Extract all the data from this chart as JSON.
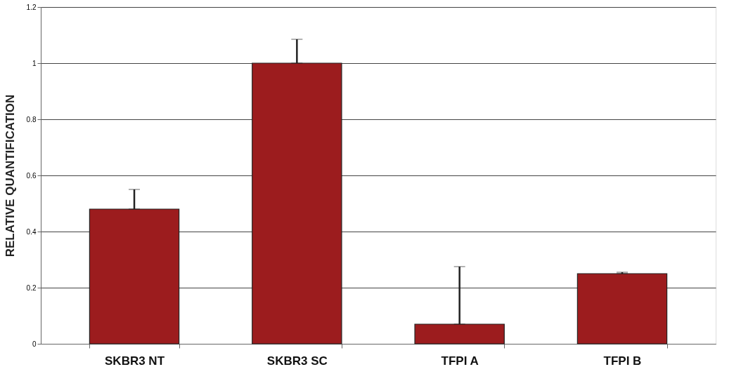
{
  "chart_data": {
    "type": "bar",
    "ylabel": "RELATIVE QUANTIFICATION",
    "categories": [
      "SKBR3 NT",
      "SKBR3 SC",
      "TFPI A",
      "TFPI B"
    ],
    "values": [
      0.48,
      1.0,
      0.07,
      0.25
    ],
    "errors": [
      [
        0.48,
        0.55
      ],
      [
        1.0,
        1.085
      ],
      [
        0.07,
        0.275
      ],
      [
        0.25,
        0.255
      ]
    ],
    "color": "#9c1c1e",
    "ylim": [
      0,
      1.2
    ],
    "yticks": [
      0,
      0.2,
      0.4,
      0.6,
      0.8,
      1,
      1.2
    ],
    "grid": "y"
  }
}
